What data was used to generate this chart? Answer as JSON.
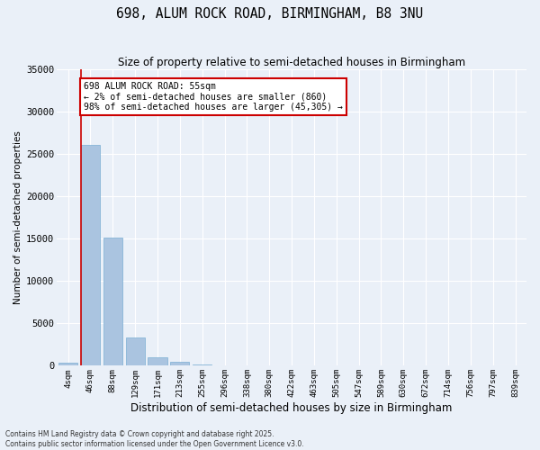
{
  "title_line1": "698, ALUM ROCK ROAD, BIRMINGHAM, B8 3NU",
  "title_line2": "Size of property relative to semi-detached houses in Birmingham",
  "xlabel": "Distribution of semi-detached houses by size in Birmingham",
  "ylabel": "Number of semi-detached properties",
  "categories": [
    "4sqm",
    "46sqm",
    "88sqm",
    "129sqm",
    "171sqm",
    "213sqm",
    "255sqm",
    "296sqm",
    "338sqm",
    "380sqm",
    "422sqm",
    "463sqm",
    "505sqm",
    "547sqm",
    "589sqm",
    "630sqm",
    "672sqm",
    "714sqm",
    "756sqm",
    "797sqm",
    "839sqm"
  ],
  "values": [
    380,
    26100,
    15100,
    3300,
    1050,
    430,
    130,
    30,
    10,
    5,
    3,
    2,
    1,
    1,
    0,
    0,
    0,
    0,
    0,
    0,
    0
  ],
  "bar_color": "#aac4e0",
  "bar_edge_color": "#7aafd4",
  "vline_color": "#cc0000",
  "vline_x": 0.575,
  "annotation_title": "698 ALUM ROCK ROAD: 55sqm",
  "annotation_line1": "← 2% of semi-detached houses are smaller (860)",
  "annotation_line2": "98% of semi-detached houses are larger (45,305) →",
  "annotation_box_facecolor": "#ffffff",
  "annotation_box_edgecolor": "#cc0000",
  "ylim": [
    0,
    35000
  ],
  "yticks": [
    0,
    5000,
    10000,
    15000,
    20000,
    25000,
    30000,
    35000
  ],
  "background_color": "#eaf0f8",
  "plot_background": "#eaf0f8",
  "grid_color": "#ffffff",
  "footnote1": "Contains HM Land Registry data © Crown copyright and database right 2025.",
  "footnote2": "Contains public sector information licensed under the Open Government Licence v3.0."
}
